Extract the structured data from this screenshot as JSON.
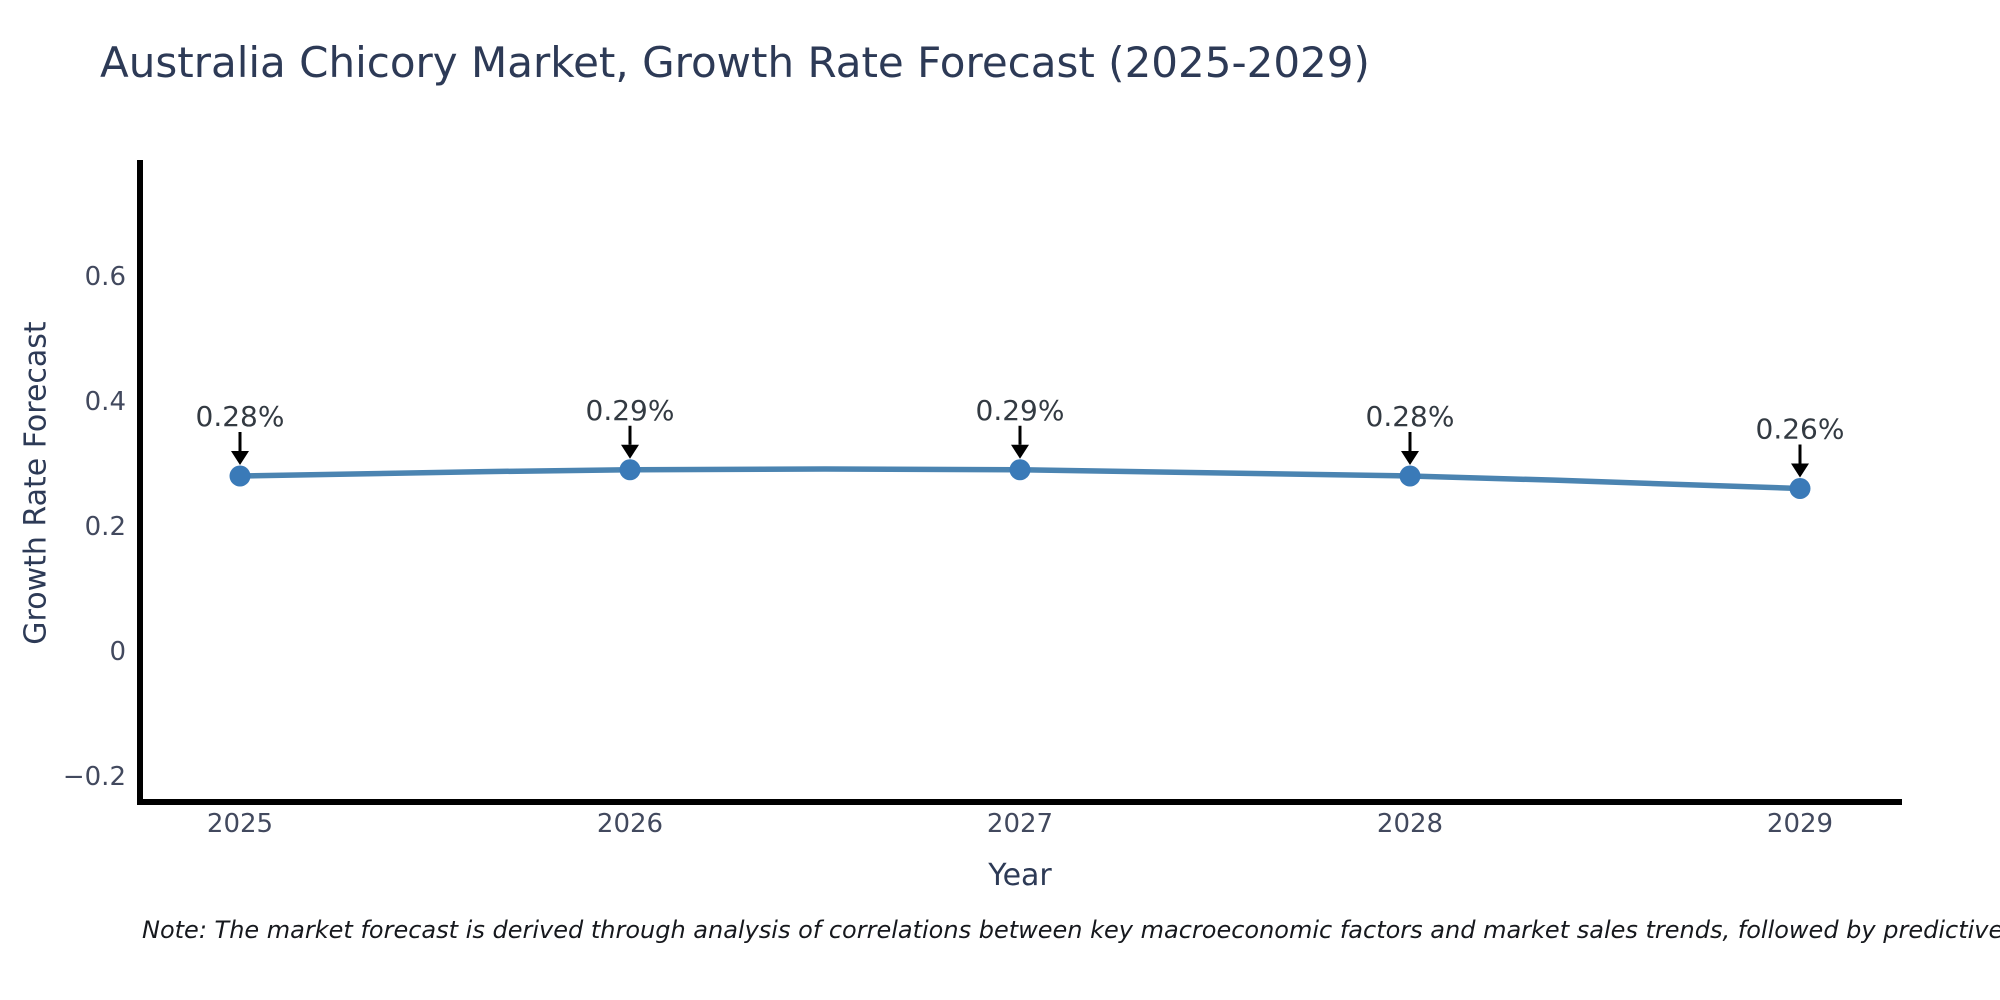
{
  "chart_data": {
    "type": "line",
    "title": "Australia Chicory Market, Growth Rate Forecast (2025-2029)",
    "xlabel": "Year",
    "ylabel": "Growth Rate Forecast",
    "x": [
      2025,
      2026,
      2027,
      2028,
      2029
    ],
    "series": [
      {
        "name": "Growth Rate Forecast",
        "values": [
          0.28,
          0.29,
          0.29,
          0.28,
          0.26
        ]
      }
    ],
    "point_labels": [
      "0.28%",
      "0.29%",
      "0.29%",
      "0.28%",
      "0.26%"
    ],
    "yticks": [
      0.6,
      0.4,
      0.2,
      0,
      -0.2
    ],
    "ytick_labels": [
      "0.6",
      "0.4",
      "0.2",
      "0",
      "−0.2"
    ],
    "ylim": [
      -0.24,
      0.79
    ],
    "grid": false,
    "legend": "none",
    "colors": {
      "line": "#4b84b1",
      "marker": "#3a7ab8",
      "axis": "#000000",
      "title": "#2d3a56",
      "tick": "#42495e",
      "annotation": "#333a42",
      "arrow": "#000000"
    }
  },
  "note": {
    "text": "Note: The market forecast is derived through analysis of correlations between key macroeconomic factors and market sales trends, followed by predictive modeling to project future sales"
  }
}
